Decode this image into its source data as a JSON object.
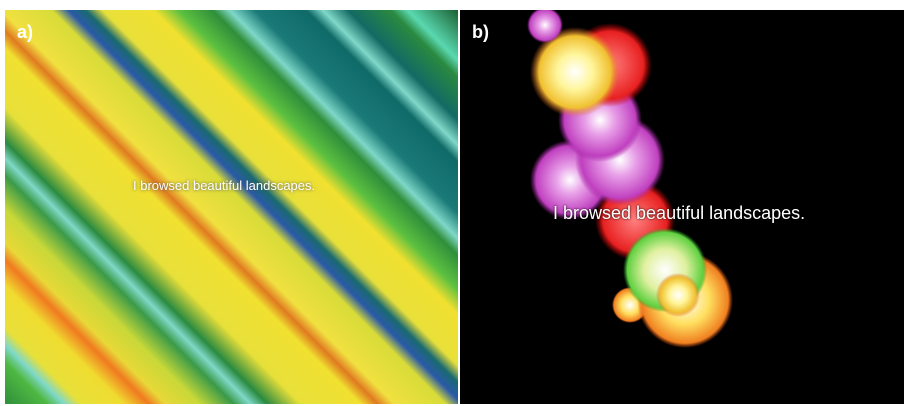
{
  "panels": [
    {
      "label": "a)",
      "caption": "I browsed beautiful landscapes."
    },
    {
      "label": "b)",
      "caption": "I browsed beautiful landscapes."
    }
  ]
}
